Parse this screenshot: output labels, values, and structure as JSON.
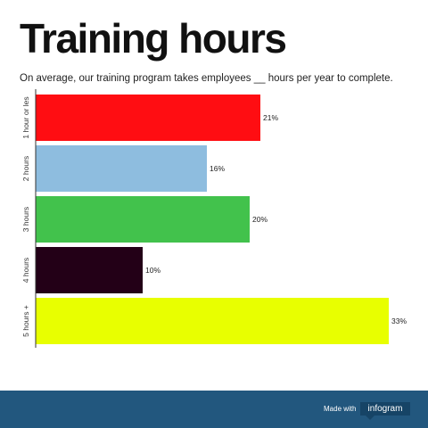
{
  "header": {
    "title": "Training hours",
    "subtitle": "On average, our training program takes employees __ hours per year to complete."
  },
  "footer": {
    "made_with": "Made with",
    "brand": "infogram"
  },
  "chart_data": {
    "type": "bar",
    "orientation": "horizontal",
    "categories": [
      "1 hour or les",
      "2 hours",
      "3 hours",
      "4 hours",
      "5 hours +"
    ],
    "values": [
      21,
      16,
      20,
      10,
      33
    ],
    "data_labels": [
      "21%",
      "16%",
      "20%",
      "10%",
      "33%"
    ],
    "colors": [
      "#ff0d12",
      "#8ebddf",
      "#42c24c",
      "#230017",
      "#e8ff00"
    ],
    "unit": "%",
    "xlim": [
      0,
      33
    ],
    "grid": false,
    "legend": "none"
  }
}
